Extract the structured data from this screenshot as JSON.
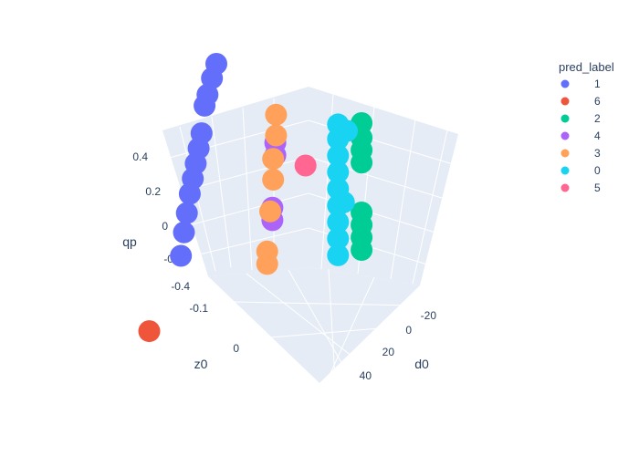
{
  "chart_data": {
    "type": "scatter",
    "title": "",
    "axes": {
      "x": {
        "label": "d0",
        "ticks": [
          "-20",
          "0",
          "20",
          "40"
        ]
      },
      "y": {
        "label": "z0",
        "ticks": [
          "-0.1",
          "0"
        ]
      },
      "z": {
        "label": "qp",
        "ticks": [
          "-0.4",
          "-0.2",
          "0",
          "0.2",
          "0.4"
        ]
      }
    },
    "legend": {
      "title": "pred_label",
      "placement": "top-right",
      "entries": [
        {
          "label": "1",
          "color": "#636efa"
        },
        {
          "label": "6",
          "color": "#ef553b"
        },
        {
          "label": "2",
          "color": "#00cc96"
        },
        {
          "label": "4",
          "color": "#ab63fa"
        },
        {
          "label": "3",
          "color": "#ffa15a"
        },
        {
          "label": "0",
          "color": "#19d3f3"
        },
        {
          "label": "5",
          "color": "#ff6692"
        }
      ]
    },
    "series": [
      {
        "name": "1",
        "color": "#636efa",
        "points": [
          {
            "d0": -20,
            "z0": 0.03,
            "qp": 0.45
          },
          {
            "d0": -17,
            "z0": 0.03,
            "qp": 0.4
          },
          {
            "d0": -14,
            "z0": 0.03,
            "qp": 0.34
          },
          {
            "d0": -12,
            "z0": 0.03,
            "qp": 0.3
          },
          {
            "d0": -10,
            "z0": 0.03,
            "qp": 0.18
          },
          {
            "d0": -8,
            "z0": 0.03,
            "qp": 0.12
          },
          {
            "d0": -6,
            "z0": 0.03,
            "qp": 0.06
          },
          {
            "d0": -4,
            "z0": 0.03,
            "qp": 0.0
          },
          {
            "d0": -2,
            "z0": 0.03,
            "qp": -0.06
          },
          {
            "d0": 0,
            "z0": 0.03,
            "qp": -0.14
          },
          {
            "d0": 2,
            "z0": 0.03,
            "qp": -0.22
          },
          {
            "d0": 4,
            "z0": 0.03,
            "qp": -0.32
          }
        ]
      },
      {
        "name": "6",
        "color": "#ef553b",
        "points": [
          {
            "d0": 45,
            "z0": 0.0,
            "qp": -0.4
          }
        ]
      },
      {
        "name": "2",
        "color": "#00cc96",
        "points": [
          {
            "d0": 5,
            "z0": -0.16,
            "qp": 0.45
          },
          {
            "d0": 5,
            "z0": -0.16,
            "qp": 0.38
          },
          {
            "d0": 5,
            "z0": -0.16,
            "qp": 0.32
          },
          {
            "d0": 5,
            "z0": -0.16,
            "qp": 0.26
          },
          {
            "d0": 5,
            "z0": -0.16,
            "qp": 0.02
          },
          {
            "d0": 5,
            "z0": -0.16,
            "qp": -0.04
          },
          {
            "d0": 5,
            "z0": -0.16,
            "qp": -0.1
          },
          {
            "d0": 5,
            "z0": -0.16,
            "qp": -0.16
          }
        ]
      },
      {
        "name": "4",
        "color": "#ab63fa",
        "points": [
          {
            "d0": -8,
            "z0": -0.05,
            "qp": 0.2
          },
          {
            "d0": -8,
            "z0": -0.05,
            "qp": 0.14
          },
          {
            "d0": -6,
            "z0": -0.05,
            "qp": -0.1
          },
          {
            "d0": -6,
            "z0": -0.05,
            "qp": -0.16
          }
        ]
      },
      {
        "name": "3",
        "color": "#ffa15a",
        "points": [
          {
            "d0": -2,
            "z0": -0.06,
            "qp": 0.38
          },
          {
            "d0": -2,
            "z0": -0.06,
            "qp": 0.28
          },
          {
            "d0": 0,
            "z0": -0.06,
            "qp": 0.18
          },
          {
            "d0": 0,
            "z0": -0.06,
            "qp": 0.08
          },
          {
            "d0": 2,
            "z0": -0.06,
            "qp": -0.06
          },
          {
            "d0": 4,
            "z0": -0.06,
            "qp": -0.24
          },
          {
            "d0": 4,
            "z0": -0.06,
            "qp": -0.3
          }
        ]
      },
      {
        "name": "0",
        "color": "#19d3f3",
        "points": [
          {
            "d0": 8,
            "z0": -0.14,
            "qp": 0.45
          },
          {
            "d0": 8,
            "z0": -0.14,
            "qp": 0.38
          },
          {
            "d0": 8,
            "z0": -0.14,
            "qp": 0.3
          },
          {
            "d0": 8,
            "z0": -0.14,
            "qp": 0.22
          },
          {
            "d0": 8,
            "z0": -0.14,
            "qp": 0.14
          },
          {
            "d0": 8,
            "z0": -0.14,
            "qp": 0.06
          },
          {
            "d0": 8,
            "z0": -0.14,
            "qp": -0.02
          },
          {
            "d0": 8,
            "z0": -0.14,
            "qp": -0.1
          },
          {
            "d0": 8,
            "z0": -0.14,
            "qp": -0.18
          },
          {
            "d0": 2,
            "z0": -0.14,
            "qp": 0.38
          },
          {
            "d0": 4,
            "z0": -0.14,
            "qp": 0.05
          }
        ]
      },
      {
        "name": "5",
        "color": "#ff6692",
        "points": [
          {
            "d0": 4,
            "z0": -0.1,
            "qp": 0.2
          }
        ]
      }
    ]
  }
}
